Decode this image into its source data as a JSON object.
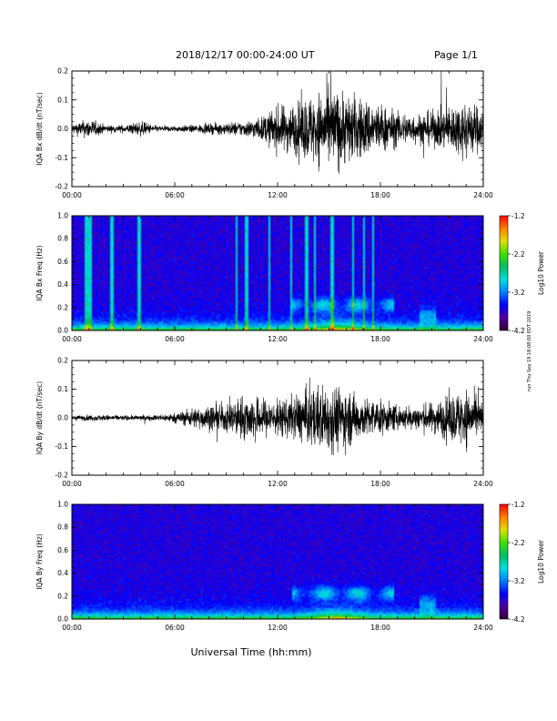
{
  "header": {
    "title": "2018/12/17  00:00-24:00 UT",
    "page": "Page 1/1"
  },
  "side_note": "run Thu Sep 19 18:08:00 EDT 2019",
  "xlabel": "Universal Time (hh:mm)",
  "colorbar": {
    "label": "Log10 Power",
    "ticks": [
      "-1.2",
      "-2.2",
      "-3.2",
      "-4.2"
    ],
    "range": [
      -4.2,
      -1.2
    ],
    "colors": [
      "#300030",
      "#5000a0",
      "#0000ff",
      "#0080ff",
      "#00e0e0",
      "#00c060",
      "#40e000",
      "#e0e000",
      "#ff8000",
      "#ff0000"
    ]
  },
  "chart_data": [
    {
      "type": "line",
      "name": "bx-dbdt",
      "ylabel": "IQA Bx dB/dt (nT/sec)",
      "ylim": [
        -0.2,
        0.2
      ],
      "yticks": [
        0.2,
        0.1,
        0.0,
        -0.1,
        -0.2
      ],
      "ytick_labels": [
        "0.2",
        "0.1",
        "0.0",
        "-0.1",
        "-0.2"
      ],
      "xlim": [
        0,
        24
      ],
      "xticks": [
        0,
        6,
        12,
        18,
        24
      ],
      "xtick_labels": [
        "00:00",
        "06:00",
        "12:00",
        "18:00",
        "24:00"
      ],
      "x": [
        0,
        1,
        2,
        3,
        4,
        5,
        6,
        7,
        8,
        9,
        10,
        11,
        12,
        13,
        14,
        15,
        16,
        17,
        18,
        19,
        20,
        21,
        22,
        23,
        24
      ],
      "amplitude": [
        0.02,
        0.04,
        0.015,
        0.015,
        0.03,
        0.012,
        0.012,
        0.015,
        0.02,
        0.025,
        0.03,
        0.045,
        0.09,
        0.1,
        0.14,
        0.16,
        0.15,
        0.12,
        0.1,
        0.07,
        0.06,
        0.07,
        0.09,
        0.12,
        0.08
      ]
    },
    {
      "type": "heatmap",
      "name": "bx-spectrogram",
      "ylabel": "IQA Bx Freq (Hz)",
      "ylim": [
        0.0,
        1.0
      ],
      "yticks": [
        1.0,
        0.8,
        0.6,
        0.4,
        0.2,
        0.0
      ],
      "ytick_labels": [
        "1.0",
        "0.8",
        "0.6",
        "0.4",
        "0.2",
        "0.0"
      ],
      "xlim": [
        0,
        24
      ],
      "xticks": [
        0,
        6,
        12,
        18,
        24
      ],
      "xtick_labels": [
        "00:00",
        "06:00",
        "12:00",
        "18:00",
        "24:00"
      ],
      "value_range": [
        -4.2,
        -1.2
      ],
      "broadband_bursts_hours": [
        0.8,
        1.0,
        2.3,
        3.9,
        9.6,
        10.2,
        11.5,
        12.8,
        13.7,
        14.2,
        15.2,
        16.4,
        17.1,
        17.6
      ]
    },
    {
      "type": "line",
      "name": "by-dbdt",
      "ylabel": "IQA By dB/dt (nT/sec)",
      "ylim": [
        -0.2,
        0.2
      ],
      "yticks": [
        0.2,
        0.1,
        0.0,
        -0.1,
        -0.2
      ],
      "ytick_labels": [
        "0.2",
        "0.1",
        "0.0",
        "-0.1",
        "-0.2"
      ],
      "xlim": [
        0,
        24
      ],
      "xticks": [
        0,
        6,
        12,
        18,
        24
      ],
      "xtick_labels": [
        "00:00",
        "06:00",
        "12:00",
        "18:00",
        "24:00"
      ],
      "x": [
        0,
        1,
        2,
        3,
        4,
        5,
        6,
        7,
        8,
        9,
        10,
        11,
        12,
        13,
        14,
        15,
        16,
        17,
        18,
        19,
        20,
        21,
        22,
        23,
        24
      ],
      "amplitude": [
        0.01,
        0.012,
        0.012,
        0.01,
        0.01,
        0.012,
        0.02,
        0.04,
        0.05,
        0.06,
        0.09,
        0.08,
        0.07,
        0.09,
        0.12,
        0.14,
        0.12,
        0.08,
        0.07,
        0.05,
        0.05,
        0.06,
        0.09,
        0.12,
        0.06
      ]
    },
    {
      "type": "heatmap",
      "name": "by-spectrogram",
      "ylabel": "IQA By Freq (Hz)",
      "ylim": [
        0.0,
        1.0
      ],
      "yticks": [
        1.0,
        0.8,
        0.6,
        0.4,
        0.2,
        0.0
      ],
      "ytick_labels": [
        "1.0",
        "0.8",
        "0.6",
        "0.4",
        "0.2",
        "0.0"
      ],
      "xlim": [
        0,
        24
      ],
      "xticks": [
        0,
        6,
        12,
        18,
        24
      ],
      "xtick_labels": [
        "00:00",
        "06:00",
        "12:00",
        "18:00",
        "24:00"
      ],
      "value_range": [
        -4.2,
        -1.2
      ],
      "broadband_bursts_hours": []
    }
  ]
}
